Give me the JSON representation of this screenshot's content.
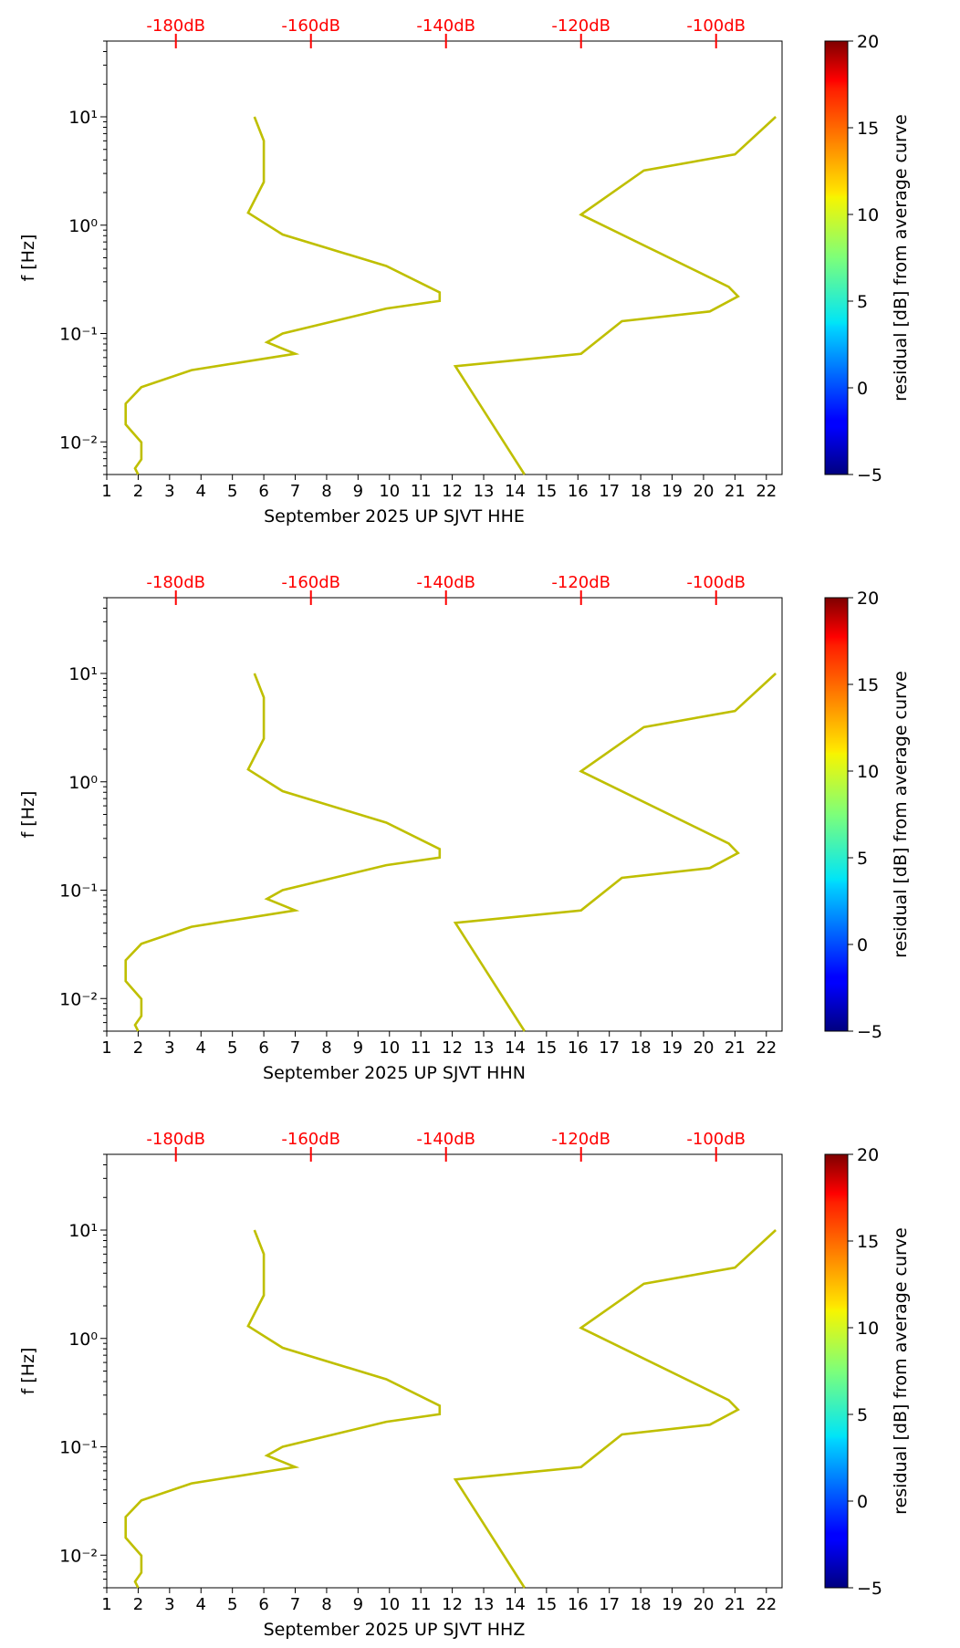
{
  "chart_data": [
    {
      "type": "line",
      "xlabel": "September 2025 UP SJVT  HHE",
      "ylabel": "f [Hz]",
      "x_ticks": [
        1,
        2,
        3,
        4,
        5,
        6,
        7,
        8,
        9,
        10,
        11,
        12,
        13,
        14,
        15,
        16,
        17,
        18,
        19,
        20,
        21,
        22
      ],
      "top_ticks": [
        {
          "label": "-180dB",
          "x": 3.2
        },
        {
          "label": "-160dB",
          "x": 7.5
        },
        {
          "label": "-140dB",
          "x": 11.8
        },
        {
          "label": "-120dB",
          "x": 16.1
        },
        {
          "label": "-100dB",
          "x": 20.4
        }
      ],
      "y_ticks": [
        {
          "label": "10⁻²",
          "value": 0.01
        },
        {
          "label": "10⁻¹",
          "value": 0.1
        },
        {
          "label": "10⁰",
          "value": 1
        },
        {
          "label": "10¹",
          "value": 10
        }
      ],
      "xlim": [
        1,
        22.5
      ],
      "ylim": [
        0.005,
        50
      ],
      "yscale": "log",
      "series": [
        {
          "color": "#bfbf00",
          "x": [
            2.0,
            1.9,
            2.1,
            2.1,
            1.6,
            1.6,
            2.1,
            3.7,
            7.0,
            6.1,
            6.6,
            9.9,
            11.6,
            11.6,
            9.9,
            6.6,
            5.5,
            6.0,
            6.0,
            5.7
          ],
          "y": [
            0.005,
            0.0057,
            0.0069,
            0.0099,
            0.0145,
            0.0225,
            0.032,
            0.046,
            0.065,
            0.083,
            0.1,
            0.17,
            0.2,
            0.24,
            0.42,
            0.82,
            1.3,
            2.5,
            6,
            10
          ]
        },
        {
          "color": "#bfbf00",
          "x": [
            14.3,
            12.1,
            16.1,
            17.4,
            20.2,
            21.1,
            20.8,
            16.1,
            18.1,
            21.0,
            22.3
          ],
          "y": [
            0.005,
            0.05,
            0.065,
            0.13,
            0.16,
            0.22,
            0.27,
            1.25,
            3.2,
            4.5,
            10
          ]
        }
      ],
      "colorbar": {
        "label": "residual [dB] from average curve",
        "ticks": [
          "−5",
          "0",
          "5",
          "10",
          "15",
          "20"
        ],
        "range": [
          -5,
          20
        ],
        "colormap": "jet"
      }
    },
    {
      "type": "line",
      "xlabel": "September 2025 UP SJVT  HHN",
      "ylabel": "f [Hz]",
      "x_ticks": [
        1,
        2,
        3,
        4,
        5,
        6,
        7,
        8,
        9,
        10,
        11,
        12,
        13,
        14,
        15,
        16,
        17,
        18,
        19,
        20,
        21,
        22
      ],
      "top_ticks": [
        {
          "label": "-180dB",
          "x": 3.2
        },
        {
          "label": "-160dB",
          "x": 7.5
        },
        {
          "label": "-140dB",
          "x": 11.8
        },
        {
          "label": "-120dB",
          "x": 16.1
        },
        {
          "label": "-100dB",
          "x": 20.4
        }
      ],
      "y_ticks": [
        {
          "label": "10⁻²",
          "value": 0.01
        },
        {
          "label": "10⁻¹",
          "value": 0.1
        },
        {
          "label": "10⁰",
          "value": 1
        },
        {
          "label": "10¹",
          "value": 10
        }
      ],
      "xlim": [
        1,
        22.5
      ],
      "ylim": [
        0.005,
        50
      ],
      "yscale": "log",
      "series": [
        {
          "color": "#bfbf00",
          "x": [
            2.0,
            1.9,
            2.1,
            2.1,
            1.6,
            1.6,
            2.1,
            3.7,
            7.0,
            6.1,
            6.6,
            9.9,
            11.6,
            11.6,
            9.9,
            6.6,
            5.5,
            6.0,
            6.0,
            5.7
          ],
          "y": [
            0.005,
            0.0057,
            0.0069,
            0.0099,
            0.0145,
            0.0225,
            0.032,
            0.046,
            0.065,
            0.083,
            0.1,
            0.17,
            0.2,
            0.24,
            0.42,
            0.82,
            1.3,
            2.5,
            6,
            10
          ]
        },
        {
          "color": "#bfbf00",
          "x": [
            14.3,
            12.1,
            16.1,
            17.4,
            20.2,
            21.1,
            20.8,
            16.1,
            18.1,
            21.0,
            22.3
          ],
          "y": [
            0.005,
            0.05,
            0.065,
            0.13,
            0.16,
            0.22,
            0.27,
            1.25,
            3.2,
            4.5,
            10
          ]
        }
      ],
      "colorbar": {
        "label": "residual [dB] from average curve",
        "ticks": [
          "−5",
          "0",
          "5",
          "10",
          "15",
          "20"
        ],
        "range": [
          -5,
          20
        ],
        "colormap": "jet"
      }
    },
    {
      "type": "line",
      "xlabel": "September 2025 UP SJVT  HHZ",
      "ylabel": "f [Hz]",
      "x_ticks": [
        1,
        2,
        3,
        4,
        5,
        6,
        7,
        8,
        9,
        10,
        11,
        12,
        13,
        14,
        15,
        16,
        17,
        18,
        19,
        20,
        21,
        22
      ],
      "top_ticks": [
        {
          "label": "-180dB",
          "x": 3.2
        },
        {
          "label": "-160dB",
          "x": 7.5
        },
        {
          "label": "-140dB",
          "x": 11.8
        },
        {
          "label": "-120dB",
          "x": 16.1
        },
        {
          "label": "-100dB",
          "x": 20.4
        }
      ],
      "y_ticks": [
        {
          "label": "10⁻²",
          "value": 0.01
        },
        {
          "label": "10⁻¹",
          "value": 0.1
        },
        {
          "label": "10⁰",
          "value": 1
        },
        {
          "label": "10¹",
          "value": 10
        }
      ],
      "xlim": [
        1,
        22.5
      ],
      "ylim": [
        0.005,
        50
      ],
      "yscale": "log",
      "series": [
        {
          "color": "#bfbf00",
          "x": [
            2.0,
            1.9,
            2.1,
            2.1,
            1.6,
            1.6,
            2.1,
            3.7,
            7.0,
            6.1,
            6.6,
            9.9,
            11.6,
            11.6,
            9.9,
            6.6,
            5.5,
            6.0,
            6.0,
            5.7
          ],
          "y": [
            0.005,
            0.0057,
            0.0069,
            0.0099,
            0.0145,
            0.0225,
            0.032,
            0.046,
            0.065,
            0.083,
            0.1,
            0.17,
            0.2,
            0.24,
            0.42,
            0.82,
            1.3,
            2.5,
            6,
            10
          ]
        },
        {
          "color": "#bfbf00",
          "x": [
            14.3,
            12.1,
            16.1,
            17.4,
            20.2,
            21.1,
            20.8,
            16.1,
            18.1,
            21.0,
            22.3
          ],
          "y": [
            0.005,
            0.05,
            0.065,
            0.13,
            0.16,
            0.22,
            0.27,
            1.25,
            3.2,
            4.5,
            10
          ]
        }
      ],
      "colorbar": {
        "label": "residual [dB] from average curve",
        "ticks": [
          "−5",
          "0",
          "5",
          "10",
          "15",
          "20"
        ],
        "range": [
          -5,
          20
        ],
        "colormap": "jet"
      }
    }
  ]
}
